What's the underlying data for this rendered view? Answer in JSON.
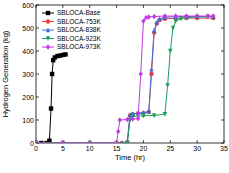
{
  "chart_data": {
    "type": "line",
    "x_label": "Time (hr)",
    "y_label": "Hydrogen Generation (kg)",
    "xlim": [
      0,
      35
    ],
    "xticks": [
      0,
      5,
      10,
      15,
      20,
      25,
      30,
      35
    ],
    "ylim": [
      0,
      600
    ],
    "yticks": [
      0,
      100,
      200,
      300,
      400,
      500,
      600
    ],
    "grid": false,
    "legend": "upper-left",
    "series": [
      {
        "name": "SBLOCA-Base",
        "color": "#000000",
        "marker": "square",
        "line_style": "solid",
        "x": [
          0,
          1,
          2,
          2.5,
          2.8,
          3,
          3.2,
          3.5,
          4,
          4.5,
          5,
          5.5
        ],
        "values": [
          0,
          0,
          0,
          10,
          150,
          300,
          360,
          372,
          378,
          380,
          383,
          385
        ]
      },
      {
        "name": "SBLOCA-753K",
        "color": "#e8413c",
        "marker": "circle",
        "line_style": "solid",
        "x": [
          0,
          5,
          10,
          15,
          16,
          17,
          17.5,
          18,
          19,
          20,
          21,
          21.5,
          22,
          22.5,
          23,
          24,
          26,
          28,
          30,
          33
        ],
        "values": [
          0,
          0,
          0,
          0,
          0,
          5,
          120,
          125,
          128,
          130,
          135,
          300,
          480,
          520,
          535,
          540,
          542,
          543,
          543,
          543
        ]
      },
      {
        "name": "SBLOCA-838K",
        "color": "#3b6fe0",
        "marker": "triangle",
        "line_style": "solid",
        "x": [
          0,
          5,
          10,
          15,
          16,
          17,
          17.5,
          18,
          19,
          20,
          21,
          21.5,
          22,
          22.5,
          23,
          24,
          26,
          28,
          30,
          33
        ],
        "values": [
          0,
          0,
          0,
          0,
          0,
          5,
          122,
          127,
          130,
          132,
          138,
          320,
          490,
          525,
          540,
          547,
          549,
          550,
          550,
          550
        ]
      },
      {
        "name": "SBLOCA-923K",
        "color": "#1a9e5a",
        "marker": "triangle-down",
        "line_style": "solid",
        "x": [
          0,
          5,
          10,
          15,
          17,
          17.5,
          18,
          20,
          22,
          24,
          24.5,
          25,
          25.5,
          26,
          27,
          28,
          30,
          32
        ],
        "values": [
          0,
          0,
          0,
          0,
          0,
          100,
          115,
          118,
          120,
          125,
          250,
          400,
          500,
          530,
          540,
          545,
          548,
          548
        ]
      },
      {
        "name": "SBLOCA-973K",
        "color": "#c23ce0",
        "marker": "diamond",
        "line_style": "solid",
        "x": [
          0,
          5,
          10,
          15,
          15.3,
          15.6,
          17,
          18,
          19,
          19.5,
          20,
          20.5,
          21,
          22,
          24,
          26,
          28,
          30,
          32,
          33
        ],
        "values": [
          0,
          0,
          0,
          0,
          50,
          100,
          102,
          104,
          106,
          300,
          530,
          545,
          548,
          550,
          552,
          552,
          552,
          552,
          552,
          552
        ]
      }
    ]
  }
}
